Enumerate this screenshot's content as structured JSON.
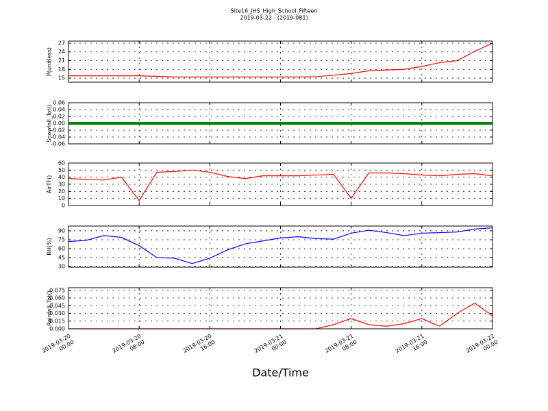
{
  "title": "Site16_JHS_High_School_Fifteen",
  "subtitle": "2019-03-22 - (2019-081)",
  "chart_data": [
    {
      "type": "line",
      "ylabel": "P(unitless)",
      "color": "#ff0000",
      "grid": true,
      "xlim": [
        "2019-03-20 00:00",
        "2019-03-22 00:00"
      ],
      "ylim": [
        13.6,
        27.7
      ],
      "yticks": [
        15,
        18,
        21,
        24,
        27
      ],
      "x": [
        "2019-03-20 00:00",
        "2019-03-20 02:00",
        "2019-03-20 04:00",
        "2019-03-20 06:00",
        "2019-03-20 08:00",
        "2019-03-20 10:00",
        "2019-03-20 12:00",
        "2019-03-20 14:00",
        "2019-03-20 16:00",
        "2019-03-20 18:00",
        "2019-03-20 20:00",
        "2019-03-20 22:00",
        "2019-03-21 00:00",
        "2019-03-21 02:00",
        "2019-03-21 04:00",
        "2019-03-21 06:00",
        "2019-03-21 08:00",
        "2019-03-21 10:00",
        "2019-03-21 12:00",
        "2019-03-21 14:00",
        "2019-03-21 16:00",
        "2019-03-21 18:00",
        "2019-03-21 20:00",
        "2019-03-21 22:00",
        "2019-03-22 00:00"
      ],
      "values": [
        15.8,
        15.8,
        15.8,
        15.8,
        15.8,
        15.6,
        15.4,
        15.4,
        15.4,
        15.4,
        15.4,
        15.4,
        15.4,
        15.4,
        15.5,
        16.0,
        16.6,
        17.5,
        17.8,
        18.0,
        19.0,
        20.3,
        21.0,
        24.2,
        27.0
      ]
    },
    {
      "type": "line",
      "ylabel": "Snowfall_Tot()",
      "color": "#008000",
      "grid": true,
      "xlim": [
        "2019-03-20 00:00",
        "2019-03-22 00:00"
      ],
      "ylim": [
        -0.06,
        0.06
      ],
      "yticks": [
        0.06,
        0.04,
        0.02,
        {
          "value": 0,
          "label": "0.00"
        },
        -0.02,
        -0.04,
        -0.06
      ],
      "x": [
        "2019-03-20 00:00",
        "2019-03-20 02:00",
        "2019-03-20 04:00",
        "2019-03-20 06:00",
        "2019-03-20 08:00",
        "2019-03-20 10:00",
        "2019-03-20 12:00",
        "2019-03-20 14:00",
        "2019-03-20 16:00",
        "2019-03-20 18:00",
        "2019-03-20 20:00",
        "2019-03-20 22:00",
        "2019-03-21 00:00",
        "2019-03-21 02:00",
        "2019-03-21 04:00",
        "2019-03-21 06:00",
        "2019-03-21 08:00",
        "2019-03-21 10:00",
        "2019-03-21 12:00",
        "2019-03-21 14:00",
        "2019-03-21 16:00",
        "2019-03-21 18:00",
        "2019-03-21 20:00",
        "2019-03-21 22:00",
        "2019-03-22 00:00"
      ],
      "values": [
        0,
        0,
        0,
        0,
        0,
        0,
        0,
        0,
        0,
        0,
        0,
        0,
        0,
        0,
        0,
        0,
        0,
        0,
        0,
        0,
        0,
        0,
        0,
        0,
        0
      ]
    },
    {
      "type": "line",
      "ylabel": "AirTF()",
      "color": "#ff0000",
      "grid": true,
      "xlim": [
        "2019-03-20 00:00",
        "2019-03-22 00:00"
      ],
      "ylim": [
        0,
        60
      ],
      "yticks": [
        0,
        10,
        20,
        30,
        40,
        50,
        60
      ],
      "x": [
        "2019-03-20 00:00",
        "2019-03-20 02:00",
        "2019-03-20 04:00",
        "2019-03-20 06:00",
        "2019-03-20 08:00",
        "2019-03-20 10:00",
        "2019-03-20 12:00",
        "2019-03-20 14:00",
        "2019-03-20 16:00",
        "2019-03-20 18:00",
        "2019-03-20 20:00",
        "2019-03-20 22:00",
        "2019-03-21 00:00",
        "2019-03-21 02:00",
        "2019-03-21 04:00",
        "2019-03-21 06:00",
        "2019-03-21 08:00",
        "2019-03-21 10:00",
        "2019-03-21 12:00",
        "2019-03-21 14:00",
        "2019-03-21 16:00",
        "2019-03-21 18:00",
        "2019-03-21 20:00",
        "2019-03-21 22:00",
        "2019-03-22 00:00"
      ],
      "values": [
        38,
        37,
        36,
        40,
        7,
        47,
        48,
        50,
        47,
        41,
        38,
        42,
        42,
        42,
        43,
        44,
        10,
        46,
        46,
        45,
        43,
        42,
        44,
        45,
        42
      ]
    },
    {
      "type": "line",
      "ylabel": "RH(%)",
      "color": "#0000ff",
      "grid": true,
      "xlim": [
        "2019-03-20 00:00",
        "2019-03-22 00:00"
      ],
      "ylim": [
        29,
        98
      ],
      "yticks": [
        30,
        45,
        60,
        75,
        90
      ],
      "x": [
        "2019-03-20 00:00",
        "2019-03-20 02:00",
        "2019-03-20 04:00",
        "2019-03-20 06:00",
        "2019-03-20 08:00",
        "2019-03-20 10:00",
        "2019-03-20 12:00",
        "2019-03-20 14:00",
        "2019-03-20 16:00",
        "2019-03-20 18:00",
        "2019-03-20 20:00",
        "2019-03-20 22:00",
        "2019-03-21 00:00",
        "2019-03-21 02:00",
        "2019-03-21 04:00",
        "2019-03-21 06:00",
        "2019-03-21 08:00",
        "2019-03-21 10:00",
        "2019-03-21 12:00",
        "2019-03-21 14:00",
        "2019-03-21 16:00",
        "2019-03-21 18:00",
        "2019-03-21 20:00",
        "2019-03-21 22:00",
        "2019-03-22 00:00"
      ],
      "values": [
        72,
        74,
        82,
        79,
        65,
        45,
        44,
        35,
        44,
        58,
        68,
        73,
        78,
        80,
        77,
        76,
        86,
        91,
        87,
        82,
        86,
        87,
        88,
        93,
        95
      ]
    },
    {
      "type": "line",
      "ylabel": "Rainfall_Tot()",
      "xlabel": "Date/Time",
      "color": "#ff0000",
      "grid": true,
      "xlim": [
        "2019-03-20 00:00",
        "2019-03-22 00:00"
      ],
      "ylim": [
        0,
        0.08
      ],
      "yticks": [
        0.075,
        {
          "value": 0.06,
          "label": "0.060"
        },
        0.045,
        {
          "value": 0.03,
          "label": "0.030"
        },
        0.015,
        {
          "value": 0,
          "label": "0.000"
        }
      ],
      "xticks": [
        "2019-03-20 00:00",
        "2019-03-20 08:00",
        "2019-03-20 16:00",
        "2019-03-21 00:00",
        "2019-03-21 08:00",
        "2019-03-21 16:00",
        "2019-03-22 00:00"
      ],
      "x": [
        "2019-03-20 00:00",
        "2019-03-20 02:00",
        "2019-03-20 04:00",
        "2019-03-20 06:00",
        "2019-03-20 08:00",
        "2019-03-20 10:00",
        "2019-03-20 12:00",
        "2019-03-20 14:00",
        "2019-03-20 16:00",
        "2019-03-20 18:00",
        "2019-03-20 20:00",
        "2019-03-20 22:00",
        "2019-03-21 00:00",
        "2019-03-21 02:00",
        "2019-03-21 04:00",
        "2019-03-21 06:00",
        "2019-03-21 08:00",
        "2019-03-21 10:00",
        "2019-03-21 12:00",
        "2019-03-21 14:00",
        "2019-03-21 16:00",
        "2019-03-21 18:00",
        "2019-03-21 20:00",
        "2019-03-21 22:00",
        "2019-03-22 00:00"
      ],
      "values": [
        0,
        0,
        0,
        0,
        0,
        0,
        0,
        0,
        0,
        0,
        0,
        0,
        0,
        0,
        0,
        0.008,
        0.02,
        0.008,
        0.005,
        0.01,
        0.02,
        0.005,
        0.03,
        0.05,
        0.025
      ]
    }
  ]
}
